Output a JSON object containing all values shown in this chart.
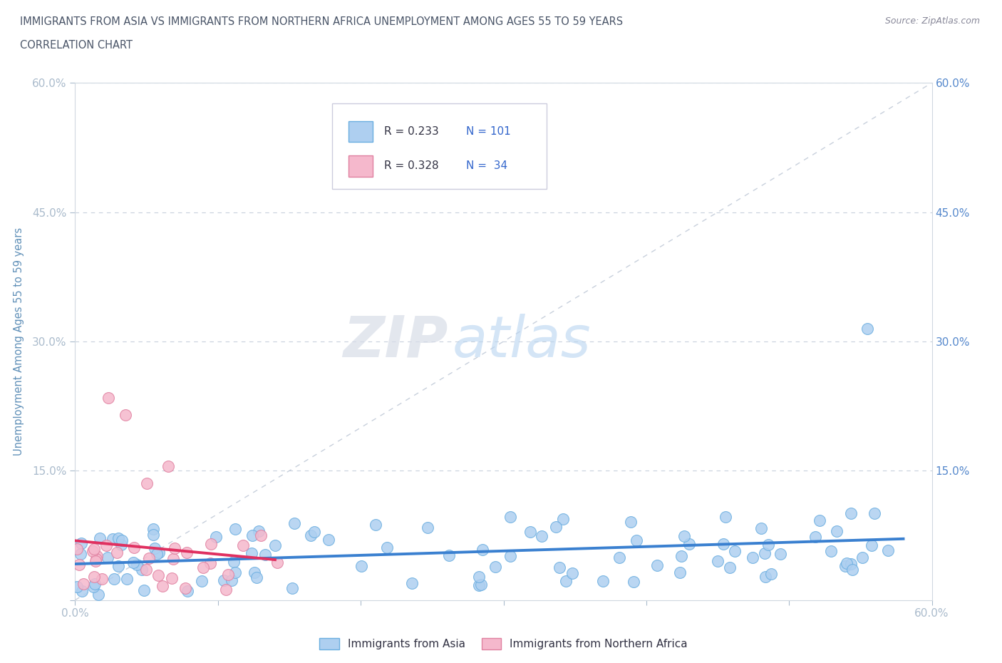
{
  "title": "IMMIGRANTS FROM ASIA VS IMMIGRANTS FROM NORTHERN AFRICA UNEMPLOYMENT AMONG AGES 55 TO 59 YEARS",
  "subtitle": "CORRELATION CHART",
  "source": "Source: ZipAtlas.com",
  "ylabel": "Unemployment Among Ages 55 to 59 years",
  "xlim": [
    0.0,
    0.6
  ],
  "ylim": [
    0.0,
    0.6
  ],
  "asia_R": 0.233,
  "asia_N": 101,
  "africa_R": 0.328,
  "africa_N": 34,
  "asia_color": "#aecff0",
  "asia_edge_color": "#6aaee0",
  "africa_color": "#f5b8cc",
  "africa_edge_color": "#e080a0",
  "regression_asia_color": "#3a80d0",
  "regression_africa_color": "#e03060",
  "diagonal_color": "#c8d0dc",
  "background_color": "#ffffff",
  "watermark_zip": "ZIP",
  "watermark_atlas": "atlas",
  "title_color": "#4a5568",
  "subtitle_color": "#4a5568",
  "source_color": "#888899",
  "axis_label_color": "#6090b8",
  "tick_label_color": "#5588cc",
  "legend_text_color": "#333344",
  "legend_N_color": "#3366cc"
}
